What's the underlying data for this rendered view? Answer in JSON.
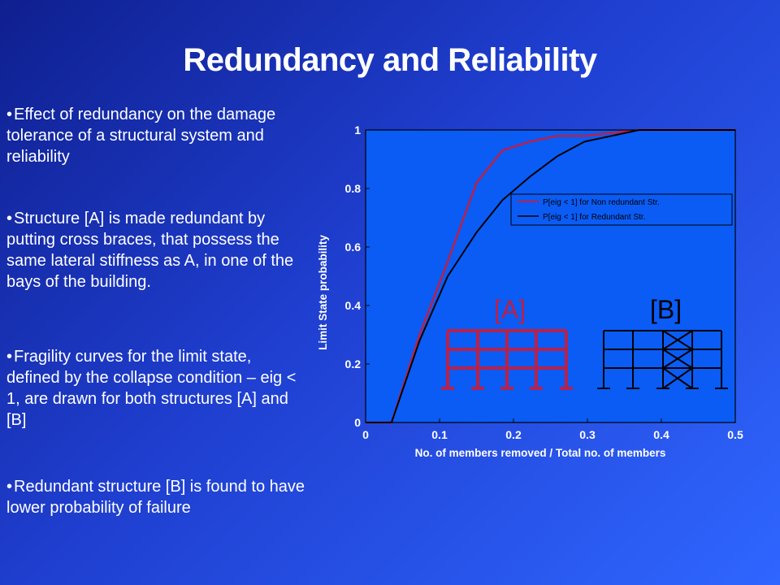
{
  "slide": {
    "title": "Redundancy and Reliability",
    "bullets": [
      "Effect of redundancy on the damage tolerance of a structural system and reliability",
      "Structure [A] is made redundant by putting cross braces, that possess the same lateral stiffness as A, in one of the bays of the building.",
      "Fragility curves for the limit state, defined by the collapse condition – eig < 1, are drawn for both structures [A] and [B]",
      "Redundant structure [B] is found to have lower probability of failure"
    ],
    "bullet_glyph": "•"
  },
  "chart_data": {
    "type": "line",
    "title": "",
    "xlabel": "No. of members removed / Total no. of members",
    "ylabel": "Limit State probability",
    "xlim": [
      0,
      0.5
    ],
    "ylim": [
      0,
      1
    ],
    "xticks": [
      "0",
      "0.1",
      "0.2",
      "0.3",
      "0.4",
      "0.5"
    ],
    "yticks": [
      "0",
      "0.2",
      "0.4",
      "0.6",
      "0.8",
      "1"
    ],
    "grid": false,
    "legend_position": "upper-right",
    "plot_background": "#0a5cf5",
    "series": [
      {
        "name": "P[eig < 1] for Non redundant Str.",
        "color": "#b8214a",
        "x": [
          0,
          0.035,
          0.073,
          0.111,
          0.15,
          0.185,
          0.222,
          0.259,
          0.296,
          0.333,
          0.37,
          0.5
        ],
        "y": [
          0,
          0,
          0.3,
          0.55,
          0.82,
          0.93,
          0.96,
          0.98,
          0.98,
          0.99,
          1.0,
          1.0
        ]
      },
      {
        "name": "P[eig < 1] for Redundant Str.",
        "color": "#000000",
        "x": [
          0,
          0.035,
          0.073,
          0.111,
          0.15,
          0.185,
          0.222,
          0.259,
          0.296,
          0.333,
          0.37,
          0.5
        ],
        "y": [
          0,
          0,
          0.28,
          0.5,
          0.65,
          0.76,
          0.84,
          0.91,
          0.96,
          0.98,
          1.0,
          1.0
        ]
      }
    ],
    "annotations": [
      {
        "label": "[A]",
        "color": "#b8214a"
      },
      {
        "label": "[B]",
        "color": "#000000"
      }
    ]
  }
}
